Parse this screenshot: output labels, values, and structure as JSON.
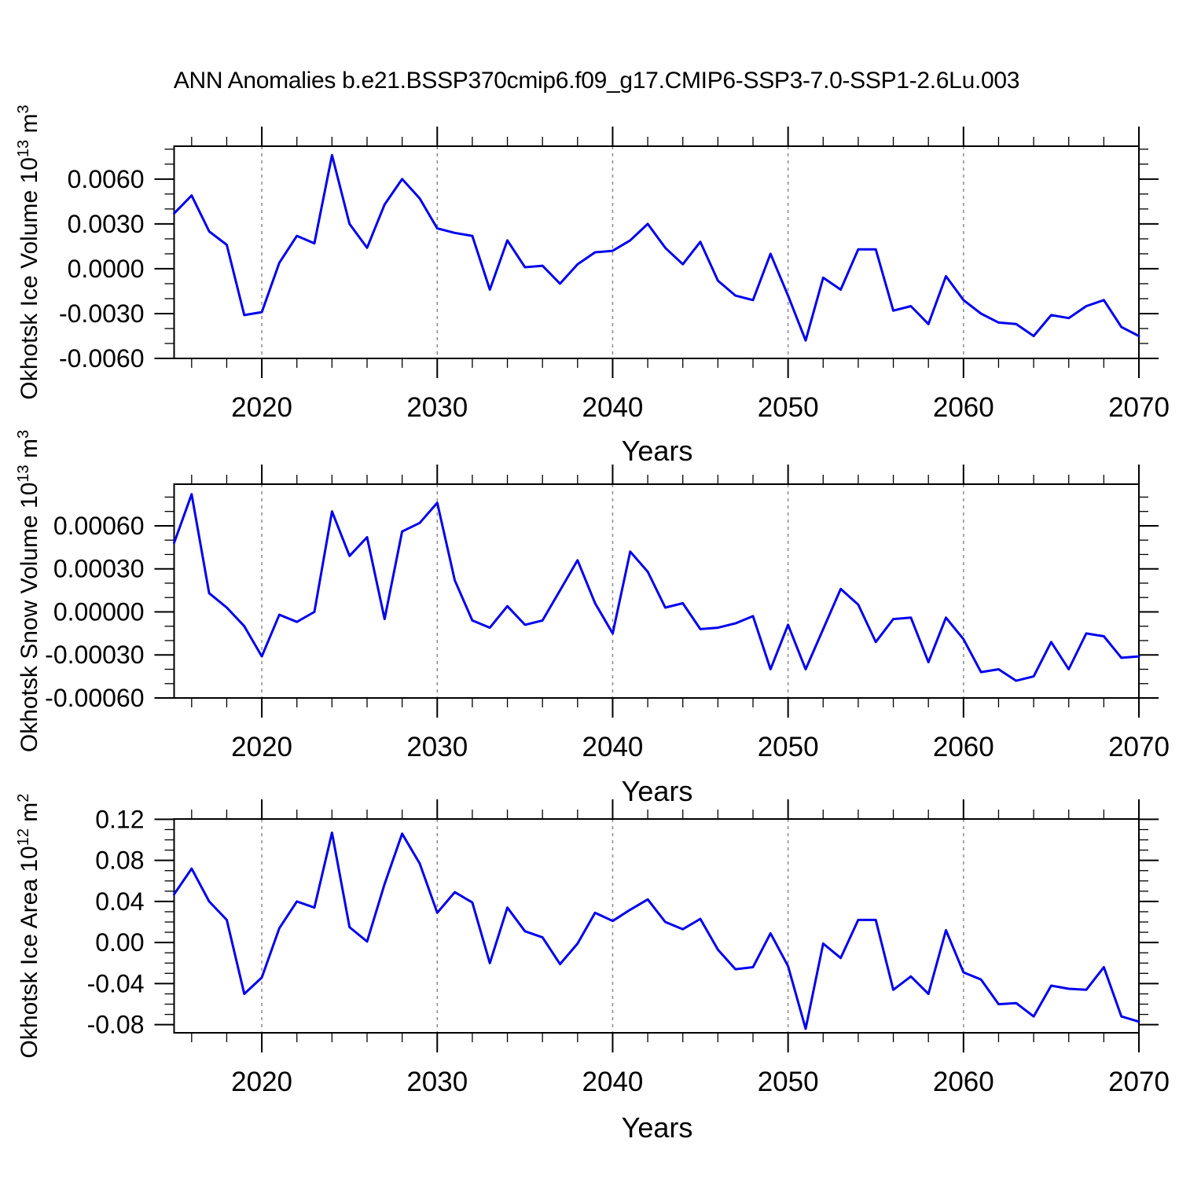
{
  "title": "ANN Anomalies b.e21.BSSP370cmip6.f09_g17.CMIP6-SSP3-7.0-SSP1-2.6Lu.003",
  "colors": {
    "line": "#0000ee",
    "gridline": "#848484",
    "axis": "#000000",
    "background": "#ffffff",
    "text": "#000000"
  },
  "x_axis": {
    "label": "Years",
    "start": 2015,
    "end": 2070,
    "major_ticks": [
      2020,
      2030,
      2040,
      2050,
      2060,
      2070
    ],
    "tick_labels": [
      "2020",
      "2030",
      "2040",
      "2050",
      "2060",
      "2070"
    ],
    "minor_step": 2,
    "gridline_years": [
      2020,
      2030,
      2040,
      2050,
      2060
    ]
  },
  "chart_data": [
    {
      "type": "line",
      "name": "okhotsk-ice-volume",
      "ylabel": {
        "text": "Okhotsk Ice Volume 10",
        "exp": "13",
        "unit": " m",
        "unit_exp": "3"
      },
      "xlabel": "Years",
      "x_start": 2015,
      "x_step": 1,
      "ylim": [
        -0.006,
        0.0082
      ],
      "ytick_values": [
        -0.006,
        -0.003,
        0.0,
        0.003,
        0.006
      ],
      "ytick_labels": [
        "-0.0060",
        "-0.0030",
        "0.0000",
        "0.0030",
        "0.0060"
      ],
      "ytick_minor_step": 0.001,
      "grid": "dashed-vertical-decades",
      "legend": "none",
      "values": [
        0.0037,
        0.0049,
        0.0025,
        0.0016,
        -0.0031,
        -0.0029,
        0.0004,
        0.0022,
        0.0017,
        0.0076,
        0.003,
        0.0014,
        0.0043,
        0.006,
        0.0047,
        0.0027,
        0.0024,
        0.0022,
        -0.0014,
        0.0019,
        0.0001,
        0.0002,
        -0.001,
        0.0003,
        0.0011,
        0.0012,
        0.0019,
        0.003,
        0.0014,
        0.0003,
        0.0018,
        -0.0008,
        -0.0018,
        -0.0021,
        0.001,
        -0.0018,
        -0.0048,
        -0.0006,
        -0.0014,
        0.0013,
        0.0013,
        -0.0028,
        -0.0025,
        -0.0037,
        -0.0005,
        -0.0021,
        -0.003,
        -0.0036,
        -0.0037,
        -0.0045,
        -0.0031,
        -0.0033,
        -0.0025,
        -0.0021,
        -0.0039,
        -0.0045
      ]
    },
    {
      "type": "line",
      "name": "okhotsk-snow-volume",
      "ylabel": {
        "text": "Okhotsk Snow Volume 10",
        "exp": "13",
        "unit": " m",
        "unit_exp": "3"
      },
      "xlabel": "Years",
      "x_start": 2015,
      "x_step": 1,
      "ylim": [
        -0.0006,
        0.00089
      ],
      "ytick_values": [
        -0.0006,
        -0.0003,
        0.0,
        0.0003,
        0.0006
      ],
      "ytick_labels": [
        "-0.00060",
        "-0.00030",
        "0.00000",
        "0.00030",
        "0.00060"
      ],
      "ytick_minor_step": 0.0001,
      "grid": "dashed-vertical-decades",
      "legend": "none",
      "values": [
        0.00048,
        0.00082,
        0.00013,
        3e-05,
        -0.0001,
        -0.00031,
        -2e-05,
        -7e-05,
        0.0,
        0.0007,
        0.00039,
        0.00052,
        -5e-05,
        0.00056,
        0.00062,
        0.00076,
        0.00022,
        -6e-05,
        -0.00011,
        4e-05,
        -9e-05,
        -6e-05,
        0.00015,
        0.00036,
        6e-05,
        -0.00015,
        0.00042,
        0.00028,
        3e-05,
        6e-05,
        -0.00012,
        -0.00011,
        -8e-05,
        -3e-05,
        -0.0004,
        -9e-05,
        -0.0004,
        -0.00012,
        0.00016,
        5e-05,
        -0.00021,
        -5e-05,
        -4e-05,
        -0.00035,
        -4e-05,
        -0.00019,
        -0.00042,
        -0.0004,
        -0.00048,
        -0.00045,
        -0.00021,
        -0.0004,
        -0.00015,
        -0.00017,
        -0.00032,
        -0.00031
      ]
    },
    {
      "type": "line",
      "name": "okhotsk-ice-area",
      "ylabel": {
        "text": "Okhotsk Ice Area 10",
        "exp": "12",
        "unit": " m",
        "unit_exp": "2"
      },
      "xlabel": "Years",
      "x_start": 2015,
      "x_step": 1,
      "ylim": [
        -0.0879,
        0.1203
      ],
      "ytick_values": [
        -0.08,
        -0.04,
        0.0,
        0.04,
        0.08,
        0.12
      ],
      "ytick_labels": [
        "-0.08",
        "-0.04",
        "0.00",
        "0.04",
        "0.08",
        "0.12"
      ],
      "ytick_minor_step": 0.01,
      "grid": "dashed-vertical-decades",
      "legend": "none",
      "values": [
        0.047,
        0.072,
        0.04,
        0.022,
        -0.05,
        -0.034,
        0.014,
        0.04,
        0.034,
        0.107,
        0.015,
        0.001,
        0.057,
        0.106,
        0.077,
        0.029,
        0.049,
        0.039,
        -0.02,
        0.034,
        0.011,
        0.005,
        -0.021,
        -0.001,
        0.029,
        0.021,
        0.032,
        0.042,
        0.02,
        0.013,
        0.023,
        -0.007,
        -0.026,
        -0.024,
        0.009,
        -0.023,
        -0.084,
        -0.001,
        -0.015,
        0.022,
        0.022,
        -0.046,
        -0.033,
        -0.05,
        0.012,
        -0.029,
        -0.036,
        -0.06,
        -0.059,
        -0.072,
        -0.042,
        -0.045,
        -0.046,
        -0.024,
        -0.072,
        -0.077
      ]
    }
  ]
}
